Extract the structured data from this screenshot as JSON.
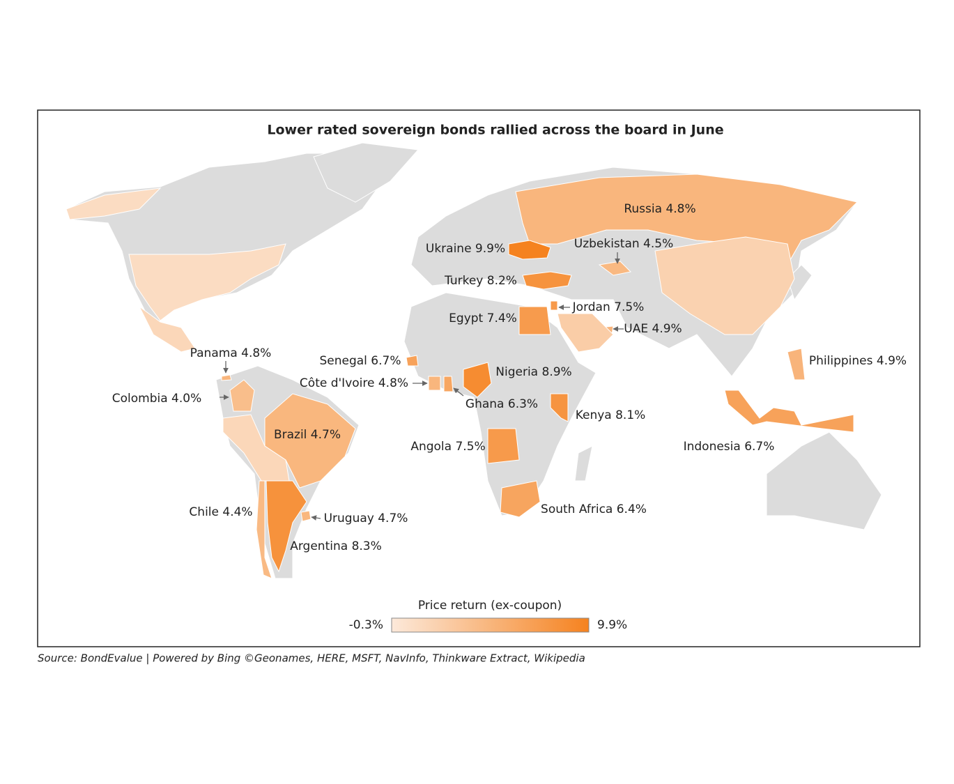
{
  "title": "Lower rated sovereign bonds rallied across the board in June",
  "source": "Source: BondEvalue | Powered by Bing ©Geonames, HERE, MSFT, NavInfo, Thinkware Extract, Wikipedia",
  "map_data": {
    "type": "choropleth",
    "regions": [
      {
        "label": "Russia 4.8%",
        "value": 4.8
      },
      {
        "label": "Ukraine 9.9%",
        "value": 9.9
      },
      {
        "label": "Turkey 8.2%",
        "value": 8.2
      },
      {
        "label": "Uzbekistan 4.5%",
        "value": 4.5
      },
      {
        "label": "Egypt 7.4%",
        "value": 7.4
      },
      {
        "label": "Jordan 7.5%",
        "value": 7.5
      },
      {
        "label": "UAE 4.9%",
        "value": 4.9
      },
      {
        "label": "Nigeria 8.9%",
        "value": 8.9
      },
      {
        "label": "Senegal 6.7%",
        "value": 6.7
      },
      {
        "label": "Côte d'Ivoire 4.8%",
        "value": 4.8
      },
      {
        "label": "Ghana 6.3%",
        "value": 6.3
      },
      {
        "label": "Kenya 8.1%",
        "value": 8.1
      },
      {
        "label": "Angola 7.5%",
        "value": 7.5
      },
      {
        "label": "South Africa 6.4%",
        "value": 6.4
      },
      {
        "label": "Brazil 4.7%",
        "value": 4.7
      },
      {
        "label": "Colombia 4.0%",
        "value": 4.0
      },
      {
        "label": "Panama 4.8%",
        "value": 4.8
      },
      {
        "label": "Chile 4.4%",
        "value": 4.4
      },
      {
        "label": "Argentina 8.3%",
        "value": 8.3
      },
      {
        "label": "Uruguay 4.7%",
        "value": 4.7
      },
      {
        "label": "Philippines 4.9%",
        "value": 4.9
      },
      {
        "label": "Indonesia 6.7%",
        "value": 6.7
      },
      {
        "label": null,
        "value": 2.0
      },
      {
        "label": null,
        "value": 1.5
      },
      {
        "label": null,
        "value": 1.0
      },
      {
        "label": null,
        "value": 1.5
      },
      {
        "label": null,
        "value": 1.0
      },
      {
        "label": null,
        "value": 2.5
      }
    ],
    "scale": {
      "title": "Price return (ex-coupon)",
      "min": {
        "value": -0.3,
        "label": "-0.3%"
      },
      "max": {
        "value": 9.9,
        "label": "9.9%"
      },
      "colors": [
        "#fce9da",
        "#f5821f"
      ]
    }
  }
}
